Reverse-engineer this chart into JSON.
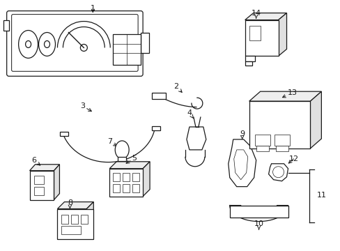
{
  "bg_color": "#ffffff",
  "line_color": "#1a1a1a",
  "fig_width": 4.89,
  "fig_height": 3.6,
  "dpi": 100,
  "lw": 0.9
}
